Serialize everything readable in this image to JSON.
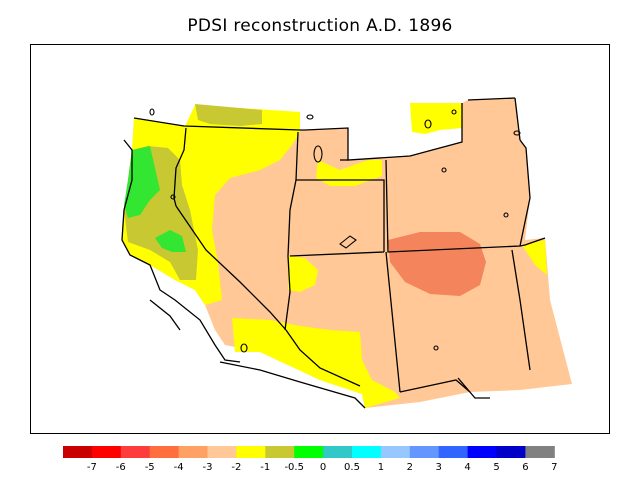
{
  "title": "PDSI reconstruction A.D. 1896",
  "colors": {
    "dark_orange": "#f4845c",
    "light_orange": "#ffc896",
    "yellow": "#ffff00",
    "olive": "#c8c832",
    "green": "#32e632",
    "boundary": "#000000"
  },
  "legend": {
    "bins": [
      {
        "color": "#c80000"
      },
      {
        "color": "#ff0000"
      },
      {
        "color": "#ff3c3c"
      },
      {
        "color": "#ff6e3c"
      },
      {
        "color": "#ffa064"
      },
      {
        "color": "#ffc896"
      },
      {
        "color": "#ffff00"
      },
      {
        "color": "#c8c832"
      },
      {
        "color": "#00ff00"
      },
      {
        "color": "#32c8c8"
      },
      {
        "color": "#00ffff"
      },
      {
        "color": "#96c8ff"
      },
      {
        "color": "#6496ff"
      },
      {
        "color": "#3264ff"
      },
      {
        "color": "#0000ff"
      },
      {
        "color": "#0000c8"
      },
      {
        "color": "#808080"
      }
    ],
    "ticks": [
      "-7",
      "-6",
      "-5",
      "-4",
      "-3",
      "-2",
      "-1",
      "-0.5",
      "0",
      "0.5",
      "1",
      "2",
      "3",
      "4",
      "5",
      "6",
      "7"
    ]
  }
}
